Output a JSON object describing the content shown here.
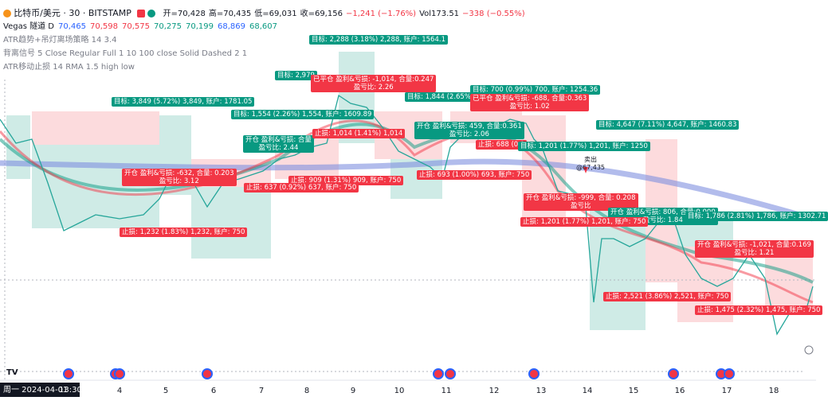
{
  "header": {
    "symbol": "比特币/美元 · 30 · BITSTAMP",
    "ohlc": [
      "开=70,428",
      "高=70,435",
      "低=69,031",
      "收=69,156",
      "−1,241 (−1.76%)",
      "Vol173.51",
      "−338 (−0.55%)"
    ],
    "vegas": {
      "name": "Vegas 隧道 D",
      "values": [
        "70,465",
        "70,598",
        "70,575",
        "70,275",
        "70,199",
        "68,869",
        "68,607"
      ],
      "colors": [
        "#2962ff",
        "#f23645",
        "#f23645",
        "#089981",
        "#089981",
        "#2962ff",
        "#089981"
      ]
    },
    "indicators": [
      "ATR趋势+吊灯离场策略 14 3.4",
      "背离信号 5 Close Regular Full 1 10 100 close Solid Dashed 2 1",
      "ATR移动止损 14 RMA 1.5 high low"
    ]
  },
  "annotations": [
    {
      "text": "目标: 2,288 (3.18%) 2,288, 账户: 1564.1",
      "color": "#089981"
    },
    {
      "text": "目标: 2,979",
      "color": "#089981"
    },
    {
      "text": "已平仓 盈利&亏损: -1,014, 合量:0.247",
      "sub": "盈亏比: 2.26",
      "color": "#f23645"
    },
    {
      "text": "目标: 1,844 (2.65%)",
      "color": "#089981"
    },
    {
      "text": "目标: 700 (0.99%) 700, 账户: 1254.36",
      "color": "#089981"
    },
    {
      "text": "已平仓 盈利&亏损: -688, 合量:0.363",
      "sub": "盈亏比: 1.02",
      "color": "#f23645"
    },
    {
      "text": "目标: 3,849 (5.72%) 3,849, 账户: 1781.05",
      "color": "#089981"
    },
    {
      "text": "目标: 1,554 (2.26%) 1,554, 账户: 1609.89",
      "color": "#089981"
    },
    {
      "text": "目标: 4,647 (7.11%) 4,647, 账户: 1460.83",
      "color": "#089981"
    },
    {
      "text": "开仓 盈利&亏损: 459, 合量:0.361",
      "sub": "盈亏比: 2.06",
      "color": "#089981"
    },
    {
      "text": "开仓 盈利&亏损: 合量",
      "sub": "盈亏比: 2.44",
      "color": "#089981"
    },
    {
      "text": "止损: 1,014 (1.41%) 1,014",
      "color": "#f23645"
    },
    {
      "text": "止损: 688 (0.9",
      "color": "#f23645"
    },
    {
      "text": "目标: 1,201 (1.77%) 1,201, 账户: 1250",
      "color": "#089981"
    },
    {
      "text": "开仓 盈利&亏损: -632, 合量: 0.203",
      "sub": "盈亏比: 3.12",
      "color": "#f23645"
    },
    {
      "text": "止损: 909 (1.31%) 909, 账户: 750",
      "color": "#f23645"
    },
    {
      "text": "止损: 637 (0.92%) 637, 账户: 750",
      "color": "#f23645"
    },
    {
      "text": "止损: 693 (1.00%) 693, 账户: 750",
      "color": "#f23645"
    },
    {
      "text": "开仓 盈利&亏损: -999, 合量: 0.208",
      "sub": "盈亏比",
      "color": "#f23645"
    },
    {
      "text": "开仓 盈利&亏损: 806, 合量:0.000",
      "sub": "盈亏比: 1.84",
      "color": "#089981"
    },
    {
      "text": "目标: 1,786 (2.81%) 1,786, 账户: 1302.71",
      "color": "#089981"
    },
    {
      "text": "止损: 1,201 (1.77%) 1,201, 账户: 750",
      "color": "#f23645"
    },
    {
      "text": "止损: 1,232 (1.83%) 1,232, 账户: 750",
      "color": "#f23645"
    },
    {
      "text": "开仓 盈利&亏损: -1,021, 合量:0.169",
      "sub": "盈亏比: 1.21",
      "color": "#f23645"
    },
    {
      "text": "止损: 2,521 (3.86%) 2,521, 账户: 750",
      "color": "#f23645"
    },
    {
      "text": "止损: 1,475 (2.32%) 1,475, 账户: 750",
      "color": "#f23645"
    }
  ],
  "marker": {
    "label": "卖出",
    "price": "@67,435"
  },
  "x_axis": {
    "start": "周一 2024-04-01",
    "time": "13:30",
    "labels": [
      "4",
      "5",
      "6",
      "7",
      "8",
      "9",
      "10",
      "11",
      "12",
      "13",
      "14",
      "15",
      "16",
      "17",
      "18"
    ]
  }
}
